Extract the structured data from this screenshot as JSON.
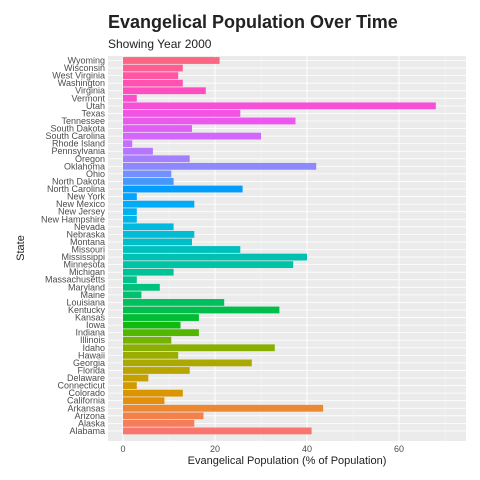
{
  "chart_data": {
    "type": "bar",
    "orientation": "horizontal",
    "title": "Evangelical Population Over Time",
    "subtitle": "Showing Year 2000",
    "xlabel": "Evangelical Population (% of Population)",
    "ylabel": "State",
    "xlim": [
      0,
      73
    ],
    "xticks": [
      0,
      20,
      40,
      60
    ],
    "grid": true,
    "legend": "none",
    "categories": [
      "Alabama",
      "Alaska",
      "Arizona",
      "Arkansas",
      "California",
      "Colorado",
      "Connecticut",
      "Delaware",
      "Florida",
      "Georgia",
      "Hawaii",
      "Idaho",
      "Illinois",
      "Indiana",
      "Iowa",
      "Kansas",
      "Kentucky",
      "Louisiana",
      "Maine",
      "Maryland",
      "Massachusetts",
      "Michigan",
      "Minnesota",
      "Mississippi",
      "Missouri",
      "Montana",
      "Nebraska",
      "Nevada",
      "New Hampshire",
      "New Jersey",
      "New Mexico",
      "New York",
      "North Carolina",
      "North Dakota",
      "Ohio",
      "Oklahoma",
      "Oregon",
      "Pennsylvania",
      "Rhode Island",
      "South Carolina",
      "South Dakota",
      "Tennessee",
      "Texas",
      "Utah",
      "Vermont",
      "Virginia",
      "Washington",
      "West Virginia",
      "Wisconsin",
      "Wyoming"
    ],
    "values": [
      41,
      15.5,
      17.5,
      43.5,
      9,
      13,
      3,
      5.5,
      14.5,
      28,
      12,
      33,
      10.5,
      16.5,
      12.5,
      16.5,
      34,
      22,
      4,
      8,
      3,
      11,
      37,
      40,
      25.5,
      15,
      15.5,
      11,
      3,
      3,
      15.5,
      3,
      26,
      11,
      10.5,
      42,
      14.5,
      6.5,
      2,
      30,
      15,
      37.5,
      25.5,
      68,
      3,
      18,
      13,
      12,
      13,
      21
    ],
    "colors": [
      "#F8766D",
      "#F67C5C",
      "#F2824A",
      "#EC8832",
      "#E48F0C",
      "#DB9500",
      "#D19B00",
      "#C6A000",
      "#B9A500",
      "#ABA900",
      "#9BAD00",
      "#89B000",
      "#72B400",
      "#53B700",
      "#12BA0E",
      "#00BC35",
      "#00BE4B",
      "#00C05D",
      "#00C16D",
      "#00C17C",
      "#00C28A",
      "#00C298",
      "#00C2A5",
      "#00C1B1",
      "#00C0BE",
      "#00BEC9",
      "#00BCD4",
      "#00B9DF",
      "#00B5E8",
      "#00B1F1",
      "#00ACF9",
      "#00A6FF",
      "#009FFF",
      "#4698FF",
      "#7290FF",
      "#8E88FF",
      "#A480FF",
      "#B677FF",
      "#C66FFF",
      "#D466FD",
      "#E05EF6",
      "#EA58EE",
      "#F253E3",
      "#F84FD9",
      "#FC4DCD",
      "#FF4EBF",
      "#FF52B1",
      "#FF57A3",
      "#FE5E93",
      "#FB6683"
    ]
  }
}
